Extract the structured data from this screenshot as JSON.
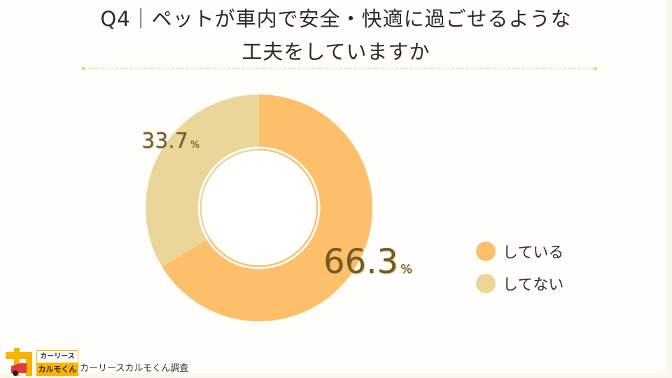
{
  "title": {
    "line1": "Q4｜ペットが車内で安全・快適に過ごせるような",
    "line2": "工夫をしていますか"
  },
  "colors": {
    "yes": "#fdbf6a",
    "no": "#ead699",
    "label_text": "#7a5a1a",
    "divider": "#f1d68a"
  },
  "chart_data": {
    "type": "pie",
    "subtype": "donut",
    "title": "Q4｜ペットが車内で安全・快適に過ごせるような工夫をしていますか",
    "categories": [
      "している",
      "してない"
    ],
    "values": [
      66.3,
      33.7
    ],
    "unit": "%",
    "legend_position": "right",
    "start_angle_deg": 0,
    "direction": "clockwise"
  },
  "labels": {
    "yes_value": "66.3",
    "no_value": "33.7",
    "pct": "%"
  },
  "legend": [
    {
      "label": "している"
    },
    {
      "label": "してない"
    }
  ],
  "footer": {
    "logo_top": "カーリース",
    "logo_bottom": "カルモくん",
    "credit": "カーリースカルモくん調査"
  }
}
